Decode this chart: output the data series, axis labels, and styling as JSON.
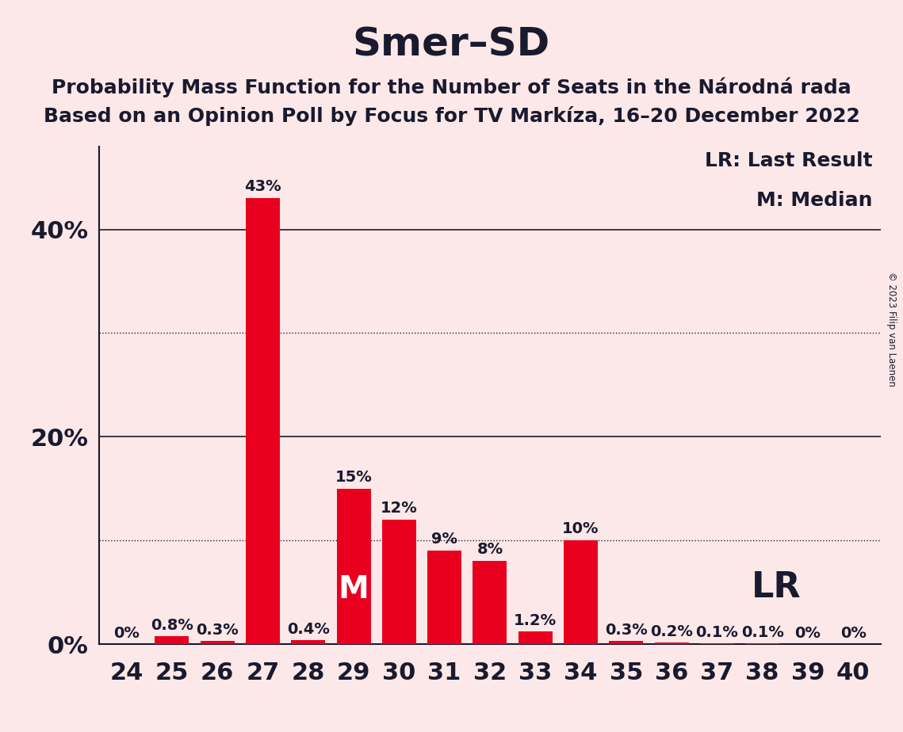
{
  "title": "Smer–SD",
  "subtitle1": "Probability Mass Function for the Number of Seats in the Národná rada",
  "subtitle2": "Based on an Opinion Poll by Focus for TV Markíza, 16–20 December 2022",
  "copyright": "© 2023 Filip van Laenen",
  "categories": [
    24,
    25,
    26,
    27,
    28,
    29,
    30,
    31,
    32,
    33,
    34,
    35,
    36,
    37,
    38,
    39,
    40
  ],
  "values": [
    0.0,
    0.8,
    0.3,
    43.0,
    0.4,
    15.0,
    12.0,
    9.0,
    8.0,
    1.2,
    10.0,
    0.3,
    0.2,
    0.1,
    0.1,
    0.0,
    0.0
  ],
  "labels": [
    "0%",
    "0.8%",
    "0.3%",
    "43%",
    "0.4%",
    "15%",
    "12%",
    "9%",
    "8%",
    "1.2%",
    "10%",
    "0.3%",
    "0.2%",
    "0.1%",
    "0.1%",
    "0%",
    "0%"
  ],
  "bar_color": "#e8001e",
  "background_color": "#fce8e8",
  "text_color": "#1a1a2e",
  "median_seat": 29,
  "lr_seat": 38,
  "yticks": [
    0,
    20,
    40
  ],
  "dotted_lines": [
    10,
    30
  ],
  "ylim": [
    0,
    48
  ],
  "title_fontsize": 36,
  "subtitle_fontsize": 18,
  "axis_fontsize": 22,
  "label_fontsize": 14,
  "legend_fontsize": 18,
  "lr_label_threshold": 5
}
